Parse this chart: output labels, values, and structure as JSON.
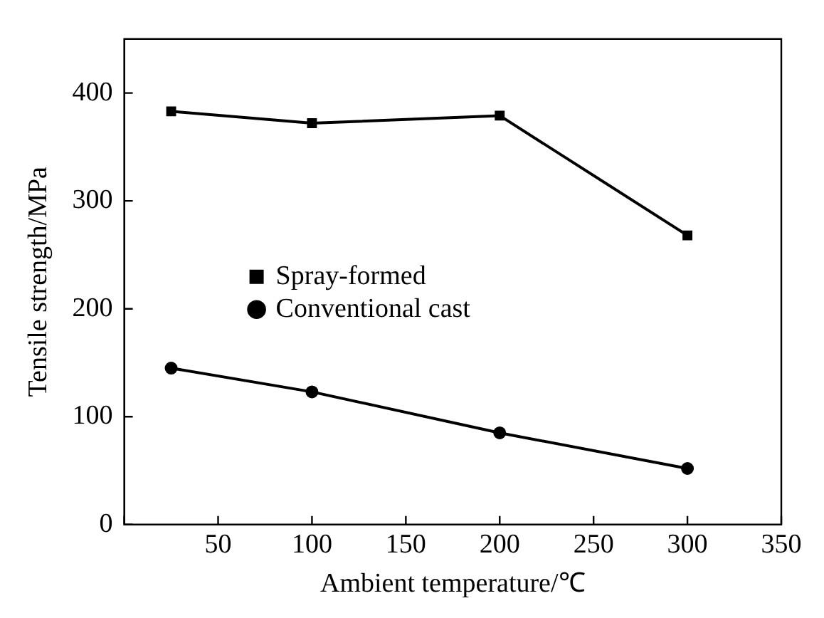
{
  "chart_data": {
    "type": "line",
    "xlabel": "Ambient temperature/℃",
    "ylabel": "Tensile strength/MPa",
    "xlim": [
      0,
      350
    ],
    "xticks": [
      {
        "value": 0,
        "label": null
      },
      50,
      100,
      150,
      200,
      250,
      300,
      350
    ],
    "ylim": [
      0,
      450
    ],
    "yticks": [
      0,
      100,
      200,
      300,
      400
    ],
    "x": [
      25,
      100,
      200,
      300
    ],
    "series": [
      {
        "name": "Spray-formed",
        "color": "#000000",
        "marker": "square",
        "values": [
          383,
          372,
          379,
          268
        ]
      },
      {
        "name": "Conventional cast",
        "color": "#000000",
        "marker": "circle",
        "values": [
          145,
          123,
          85,
          52
        ]
      }
    ],
    "legend": "left",
    "grid": false,
    "line_style": "solid"
  }
}
